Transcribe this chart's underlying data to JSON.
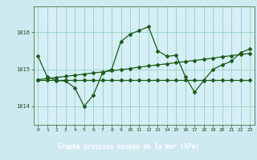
{
  "title": "Graphe pression niveau de la mer (hPa)",
  "bg_color": "#cfe9f0",
  "plot_bg_color": "#d6eef5",
  "bottom_bg_color": "#2d6e2d",
  "line_color": "#1a5c1a",
  "grid_color": "#88ccbb",
  "axis_label_color": "#1a5c1a",
  "tick_label_color": "#1a4a1a",
  "bottom_label_color": "#ffffff",
  "ylim": [
    1013.5,
    1016.7
  ],
  "xlim": [
    -0.5,
    23.5
  ],
  "yticks": [
    1014,
    1015,
    1016
  ],
  "xticks": [
    0,
    1,
    2,
    3,
    4,
    5,
    6,
    7,
    8,
    9,
    10,
    11,
    12,
    13,
    14,
    15,
    16,
    17,
    18,
    19,
    20,
    21,
    22,
    23
  ],
  "series1": [
    1015.35,
    1014.8,
    1014.7,
    1014.68,
    1014.5,
    1014.0,
    1014.3,
    1014.9,
    1015.0,
    1015.75,
    1015.95,
    1016.05,
    1016.15,
    1015.5,
    1015.35,
    1015.38,
    1014.8,
    1014.38,
    1014.7,
    1015.0,
    1015.12,
    1015.22,
    1015.45,
    1015.55
  ],
  "series2": [
    1014.72,
    1014.72,
    1014.72,
    1014.72,
    1014.72,
    1014.72,
    1014.72,
    1014.72,
    1014.72,
    1014.72,
    1014.72,
    1014.72,
    1014.72,
    1014.72,
    1014.72,
    1014.72,
    1014.72,
    1014.72,
    1014.72,
    1014.72,
    1014.72,
    1014.72,
    1014.72,
    1014.72
  ],
  "series3": [
    1014.72,
    1014.75,
    1014.78,
    1014.81,
    1014.84,
    1014.87,
    1014.9,
    1014.93,
    1014.96,
    1014.99,
    1015.02,
    1015.06,
    1015.09,
    1015.12,
    1015.15,
    1015.18,
    1015.21,
    1015.24,
    1015.27,
    1015.3,
    1015.34,
    1015.37,
    1015.4,
    1015.43
  ]
}
